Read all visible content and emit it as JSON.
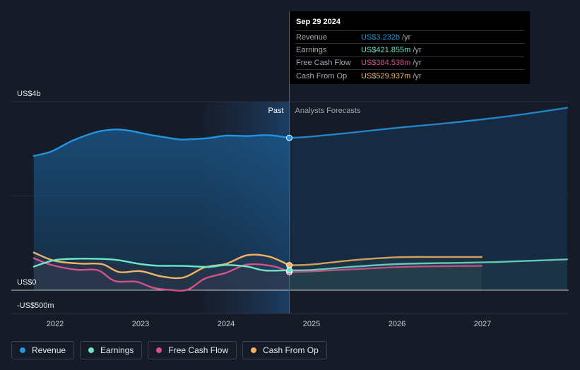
{
  "tooltip": {
    "date": "Sep 29 2024",
    "rows": [
      {
        "label": "Revenue",
        "value": "US$3.232b",
        "unit": "/yr",
        "color": "#2394df"
      },
      {
        "label": "Earnings",
        "value": "US$421.855m",
        "unit": "/yr",
        "color": "#6ce5c8"
      },
      {
        "label": "Free Cash Flow",
        "value": "US$384.538m",
        "unit": "/yr",
        "color": "#d7508c"
      },
      {
        "label": "Cash From Op",
        "value": "US$529.937m",
        "unit": "/yr",
        "color": "#f0b460"
      }
    ]
  },
  "chart_data": {
    "type": "line",
    "title": "",
    "ylim": [
      -500,
      4000
    ],
    "y_tick_labels": [
      "US$4b",
      "US$0",
      "-US$500m"
    ],
    "x_tick_labels": [
      "2022",
      "2023",
      "2024",
      "2025",
      "2026",
      "2027"
    ],
    "x_range": [
      2021.5,
      2027.99
    ],
    "divider_x": 2024.74,
    "highlight_range": [
      2023.75,
      2024.74
    ],
    "region_labels": {
      "past": "Past",
      "forecast": "Analysts Forecasts"
    },
    "series": [
      {
        "name": "Revenue",
        "color": "#2394df",
        "past": [
          [
            2021.75,
            2850
          ],
          [
            2021.95,
            2940
          ],
          [
            2022.2,
            3170
          ],
          [
            2022.45,
            3340
          ],
          [
            2022.6,
            3395
          ],
          [
            2022.75,
            3410
          ],
          [
            2022.9,
            3375
          ],
          [
            2023.1,
            3300
          ],
          [
            2023.3,
            3240
          ],
          [
            2023.45,
            3200
          ],
          [
            2023.6,
            3205
          ],
          [
            2023.8,
            3230
          ],
          [
            2024.0,
            3280
          ],
          [
            2024.25,
            3272
          ],
          [
            2024.5,
            3290
          ],
          [
            2024.74,
            3232
          ]
        ],
        "forecast": [
          [
            2024.74,
            3232
          ],
          [
            2025.0,
            3260
          ],
          [
            2025.5,
            3350
          ],
          [
            2026.0,
            3445
          ],
          [
            2026.5,
            3530
          ],
          [
            2027.0,
            3625
          ],
          [
            2027.5,
            3740
          ],
          [
            2027.99,
            3870
          ]
        ]
      },
      {
        "name": "Earnings",
        "color": "#6ce5c8",
        "past": [
          [
            2021.75,
            500
          ],
          [
            2022.0,
            640
          ],
          [
            2022.3,
            670
          ],
          [
            2022.6,
            660
          ],
          [
            2022.75,
            635
          ],
          [
            2023.0,
            555
          ],
          [
            2023.2,
            520
          ],
          [
            2023.5,
            515
          ],
          [
            2023.8,
            495
          ],
          [
            2024.0,
            535
          ],
          [
            2024.25,
            500
          ],
          [
            2024.45,
            420
          ],
          [
            2024.74,
            422
          ]
        ],
        "forecast": [
          [
            2024.74,
            422
          ],
          [
            2025.0,
            430
          ],
          [
            2025.5,
            500
          ],
          [
            2026.0,
            555
          ],
          [
            2026.5,
            575
          ],
          [
            2027.0,
            590
          ],
          [
            2027.5,
            620
          ],
          [
            2027.99,
            655
          ]
        ]
      },
      {
        "name": "Free Cash Flow",
        "color": "#d7508c",
        "past": [
          [
            2021.75,
            680
          ],
          [
            2021.95,
            540
          ],
          [
            2022.25,
            435
          ],
          [
            2022.5,
            425
          ],
          [
            2022.7,
            195
          ],
          [
            2022.95,
            180
          ],
          [
            2023.15,
            50
          ],
          [
            2023.35,
            5
          ],
          [
            2023.55,
            10
          ],
          [
            2023.75,
            245
          ],
          [
            2024.0,
            370
          ],
          [
            2024.25,
            545
          ],
          [
            2024.55,
            510
          ],
          [
            2024.74,
            385
          ]
        ],
        "forecast": [
          [
            2024.74,
            385
          ],
          [
            2025.0,
            400
          ],
          [
            2025.5,
            445
          ],
          [
            2026.0,
            490
          ],
          [
            2026.5,
            510
          ],
          [
            2026.99,
            515
          ]
        ]
      },
      {
        "name": "Cash From Op",
        "color": "#f0b460",
        "past": [
          [
            2021.75,
            800
          ],
          [
            2022.0,
            620
          ],
          [
            2022.3,
            565
          ],
          [
            2022.55,
            555
          ],
          [
            2022.75,
            385
          ],
          [
            2023.0,
            405
          ],
          [
            2023.25,
            290
          ],
          [
            2023.5,
            270
          ],
          [
            2023.75,
            485
          ],
          [
            2024.0,
            560
          ],
          [
            2024.25,
            745
          ],
          [
            2024.5,
            715
          ],
          [
            2024.74,
            530
          ]
        ],
        "forecast": [
          [
            2024.74,
            530
          ],
          [
            2025.0,
            545
          ],
          [
            2025.5,
            640
          ],
          [
            2026.0,
            700
          ],
          [
            2026.5,
            705
          ],
          [
            2026.99,
            705
          ]
        ]
      }
    ]
  },
  "legend": [
    {
      "label": "Revenue",
      "color": "#2394df"
    },
    {
      "label": "Earnings",
      "color": "#6ce5c8"
    },
    {
      "label": "Free Cash Flow",
      "color": "#d7508c"
    },
    {
      "label": "Cash From Op",
      "color": "#f0b460"
    }
  ]
}
